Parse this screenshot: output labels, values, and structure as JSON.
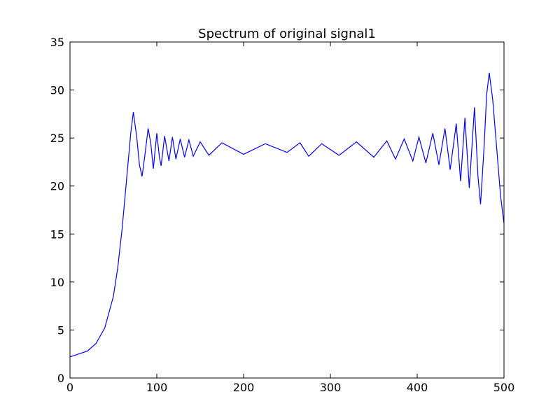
{
  "chart_data": {
    "type": "line",
    "title": "Spectrum of original signal1",
    "xlabel": "",
    "ylabel": "",
    "xlim": [
      0,
      500
    ],
    "ylim": [
      0,
      35
    ],
    "x_ticks": [
      0,
      100,
      200,
      300,
      400,
      500
    ],
    "y_ticks": [
      0,
      5,
      10,
      15,
      20,
      25,
      30,
      35
    ],
    "grid": false,
    "legend": "none",
    "line_color": "#0000ff",
    "series": [
      {
        "values": [
          [
            0,
            2.2
          ],
          [
            20,
            2.8
          ],
          [
            30,
            3.6
          ],
          [
            40,
            5.2
          ],
          [
            50,
            8.5
          ],
          [
            55,
            11.5
          ],
          [
            60,
            15.5
          ],
          [
            65,
            20.5
          ],
          [
            70,
            25.5
          ],
          [
            73,
            27.7
          ],
          [
            77,
            25.0
          ],
          [
            80,
            22.2
          ],
          [
            83,
            21.0
          ],
          [
            86,
            23.0
          ],
          [
            90,
            26.0
          ],
          [
            93,
            24.5
          ],
          [
            96,
            21.8
          ],
          [
            100,
            25.5
          ],
          [
            103,
            23.0
          ],
          [
            105,
            22.1
          ],
          [
            109,
            25.2
          ],
          [
            114,
            22.6
          ],
          [
            118,
            25.1
          ],
          [
            122,
            22.8
          ],
          [
            127,
            24.9
          ],
          [
            132,
            23.0
          ],
          [
            137,
            24.8
          ],
          [
            142,
            23.1
          ],
          [
            150,
            24.6
          ],
          [
            160,
            23.2
          ],
          [
            175,
            24.5
          ],
          [
            200,
            23.3
          ],
          [
            225,
            24.4
          ],
          [
            250,
            23.5
          ],
          [
            265,
            24.5
          ],
          [
            275,
            23.1
          ],
          [
            290,
            24.4
          ],
          [
            310,
            23.2
          ],
          [
            330,
            24.6
          ],
          [
            350,
            23.0
          ],
          [
            365,
            24.7
          ],
          [
            375,
            22.8
          ],
          [
            385,
            24.9
          ],
          [
            395,
            22.6
          ],
          [
            402,
            25.1
          ],
          [
            410,
            22.4
          ],
          [
            418,
            25.5
          ],
          [
            425,
            22.2
          ],
          [
            432,
            26.0
          ],
          [
            438,
            21.7
          ],
          [
            445,
            26.5
          ],
          [
            450,
            20.5
          ],
          [
            455,
            27.1
          ],
          [
            460,
            19.8
          ],
          [
            466,
            28.2
          ],
          [
            470,
            21.0
          ],
          [
            473,
            18.1
          ],
          [
            477,
            24.0
          ],
          [
            480,
            29.5
          ],
          [
            483,
            31.8
          ],
          [
            487,
            29.0
          ],
          [
            492,
            23.5
          ],
          [
            496,
            19.0
          ],
          [
            500,
            16.1
          ]
        ]
      }
    ]
  }
}
